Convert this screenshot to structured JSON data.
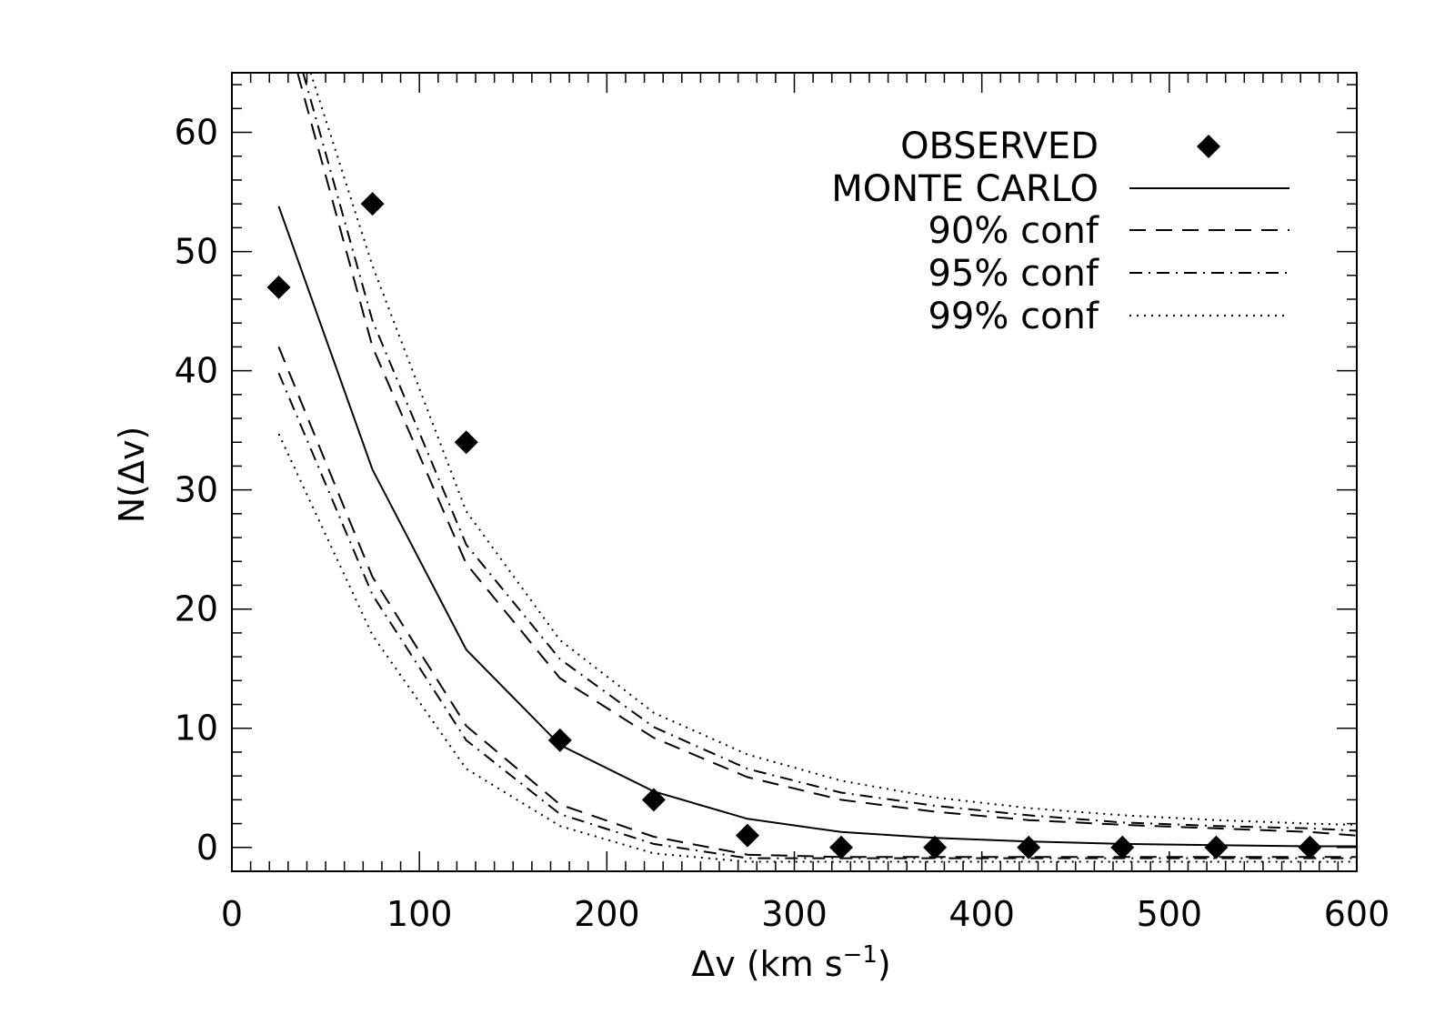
{
  "chart_data": {
    "type": "line",
    "xlabel": "Δv (km s",
    "xlabel_exponent": "−1",
    "xlabel_close": ")",
    "ylabel": "N(Δv)",
    "xlim": [
      0,
      600
    ],
    "ylim": [
      -2,
      65
    ],
    "x_ticks": [
      0,
      100,
      200,
      300,
      400,
      500,
      600
    ],
    "y_ticks": [
      0,
      10,
      20,
      30,
      40,
      50,
      60
    ],
    "x_minor_step": 10,
    "y_minor_step": 2,
    "grid": false,
    "legend_position": "top-right",
    "legend": [
      {
        "label": "OBSERVED",
        "style": "diamond"
      },
      {
        "label": "MONTE CARLO",
        "style": "solid"
      },
      {
        "label": "90% conf",
        "style": "dashed"
      },
      {
        "label": "95% conf",
        "style": "dashdot"
      },
      {
        "label": "99% conf",
        "style": "dotted"
      }
    ],
    "observed": {
      "name": "OBSERVED",
      "x": [
        25,
        75,
        125,
        175,
        225,
        275,
        325,
        375,
        425,
        475,
        525,
        575
      ],
      "y": [
        47,
        54,
        34,
        9,
        4,
        1,
        0,
        0,
        0,
        0,
        0,
        0
      ]
    },
    "series": [
      {
        "name": "MONTE CARLO",
        "style": "solid",
        "x": [
          25,
          75,
          125,
          175,
          225,
          275,
          325,
          375,
          425,
          475,
          525,
          575,
          600
        ],
        "y": [
          53.8,
          31.7,
          16.6,
          8.6,
          4.7,
          2.4,
          1.3,
          0.8,
          0.5,
          0.3,
          0.2,
          0.1,
          0.1
        ]
      },
      {
        "name": "90% conf",
        "style": "dashed",
        "x": [
          25,
          75,
          125,
          175,
          225,
          275,
          325,
          375,
          425,
          475,
          525,
          575,
          600
        ],
        "y": [
          42,
          22.7,
          10.2,
          3.6,
          0.9,
          -0.6,
          -0.8,
          -0.8,
          -0.8,
          -0.8,
          -0.8,
          -0.8,
          -0.8
        ]
      },
      {
        "name": "90% conf",
        "style": "dashed",
        "x": [
          35,
          75,
          125,
          175,
          225,
          275,
          325,
          375,
          425,
          475,
          525,
          575,
          600
        ],
        "y": [
          65,
          42,
          23.8,
          14.2,
          9.2,
          5.9,
          4.0,
          3.0,
          2.3,
          1.9,
          1.6,
          1.3,
          1.0
        ]
      },
      {
        "name": "95% conf",
        "style": "dashdot",
        "x": [
          25,
          75,
          125,
          175,
          225,
          275,
          325,
          375,
          425,
          475,
          525,
          575,
          600
        ],
        "y": [
          39.8,
          21.2,
          9.0,
          2.8,
          0.3,
          -0.9,
          -0.9,
          -0.9,
          -0.9,
          -0.9,
          -0.9,
          -0.9,
          -0.9
        ]
      },
      {
        "name": "95% conf",
        "style": "dashdot",
        "x": [
          38,
          75,
          125,
          175,
          225,
          275,
          325,
          375,
          425,
          475,
          525,
          575,
          600
        ],
        "y": [
          65,
          44.2,
          25.4,
          15.8,
          10.1,
          6.6,
          4.6,
          3.5,
          2.7,
          2.1,
          1.8,
          1.6,
          1.4
        ]
      },
      {
        "name": "99% conf",
        "style": "dotted",
        "x": [
          25,
          75,
          125,
          175,
          225,
          275,
          325,
          375,
          425,
          475,
          525,
          575,
          600
        ],
        "y": [
          34.7,
          17.8,
          6.6,
          1.8,
          -0.5,
          -1.2,
          -1.2,
          -1.2,
          -1.2,
          -1.2,
          -1.2,
          -1.2,
          -1.2
        ]
      },
      {
        "name": "99% conf",
        "style": "dotted",
        "x": [
          42,
          75,
          125,
          175,
          225,
          275,
          325,
          375,
          425,
          475,
          525,
          575,
          600
        ],
        "y": [
          65,
          48.8,
          28.2,
          17.4,
          11.3,
          7.8,
          5.6,
          4.2,
          3.3,
          2.7,
          2.3,
          2.0,
          1.9
        ]
      }
    ]
  }
}
